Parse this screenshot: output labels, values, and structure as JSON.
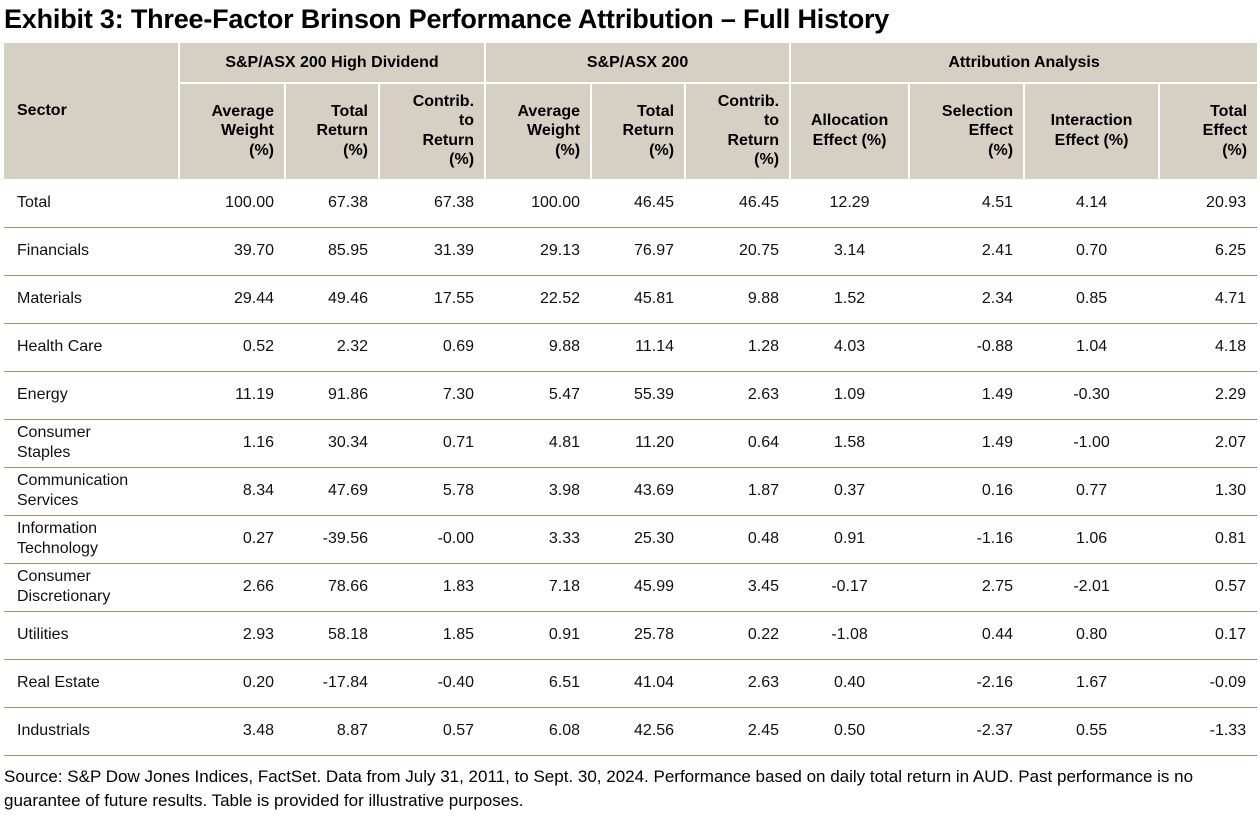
{
  "title": "Exhibit 3: Three-Factor Brinson Performance Attribution – Full History",
  "table": {
    "sector_header": "Sector",
    "groups": [
      {
        "label": "S&P/ASX 200 High Dividend",
        "span": 3
      },
      {
        "label": "S&P/ASX 200",
        "span": 3
      },
      {
        "label": "Attribution Analysis",
        "span": 4
      }
    ],
    "columns": [
      "Average\nWeight\n(%)",
      "Total\nReturn\n(%)",
      "Contrib.\nto\nReturn\n(%)",
      "Average\nWeight\n(%)",
      "Total\nReturn\n(%)",
      "Contrib.\nto\nReturn\n(%)",
      "Allocation\nEffect (%)",
      "Selection\nEffect\n(%)",
      "Interaction\nEffect (%)",
      "Total\nEffect\n(%)"
    ],
    "rows": [
      {
        "sector": "Total",
        "values": [
          "100.00",
          "67.38",
          "67.38",
          "100.00",
          "46.45",
          "46.45",
          "12.29",
          "4.51",
          "4.14",
          "20.93"
        ]
      },
      {
        "sector": "Financials",
        "values": [
          "39.70",
          "85.95",
          "31.39",
          "29.13",
          "76.97",
          "20.75",
          "3.14",
          "2.41",
          "0.70",
          "6.25"
        ]
      },
      {
        "sector": "Materials",
        "values": [
          "29.44",
          "49.46",
          "17.55",
          "22.52",
          "45.81",
          "9.88",
          "1.52",
          "2.34",
          "0.85",
          "4.71"
        ]
      },
      {
        "sector": "Health Care",
        "values": [
          "0.52",
          "2.32",
          "0.69",
          "9.88",
          "11.14",
          "1.28",
          "4.03",
          "-0.88",
          "1.04",
          "4.18"
        ]
      },
      {
        "sector": "Energy",
        "values": [
          "11.19",
          "91.86",
          "7.30",
          "5.47",
          "55.39",
          "2.63",
          "1.09",
          "1.49",
          "-0.30",
          "2.29"
        ]
      },
      {
        "sector": "Consumer\nStaples",
        "values": [
          "1.16",
          "30.34",
          "0.71",
          "4.81",
          "11.20",
          "0.64",
          "1.58",
          "1.49",
          "-1.00",
          "2.07"
        ]
      },
      {
        "sector": "Communication\nServices",
        "values": [
          "8.34",
          "47.69",
          "5.78",
          "3.98",
          "43.69",
          "1.87",
          "0.37",
          "0.16",
          "0.77",
          "1.30"
        ]
      },
      {
        "sector": "Information\nTechnology",
        "values": [
          "0.27",
          "-39.56",
          "-0.00",
          "3.33",
          "25.30",
          "0.48",
          "0.91",
          "-1.16",
          "1.06",
          "0.81"
        ]
      },
      {
        "sector": "Consumer\nDiscretionary",
        "values": [
          "2.66",
          "78.66",
          "1.83",
          "7.18",
          "45.99",
          "3.45",
          "-0.17",
          "2.75",
          "-2.01",
          "0.57"
        ]
      },
      {
        "sector": "Utilities",
        "values": [
          "2.93",
          "58.18",
          "1.85",
          "0.91",
          "25.78",
          "0.22",
          "-1.08",
          "0.44",
          "0.80",
          "0.17"
        ]
      },
      {
        "sector": "Real Estate",
        "values": [
          "0.20",
          "-17.84",
          "-0.40",
          "6.51",
          "41.04",
          "2.63",
          "0.40",
          "-2.16",
          "1.67",
          "-0.09"
        ]
      },
      {
        "sector": "Industrials",
        "values": [
          "3.48",
          "8.87",
          "0.57",
          "6.08",
          "42.56",
          "2.45",
          "0.50",
          "-2.37",
          "0.55",
          "-1.33"
        ]
      }
    ]
  },
  "source": "Source: S&P Dow Jones Indices, FactSet. Data from July 31, 2011, to Sept. 30, 2024. Performance based on daily total return in AUD. Past performance is no guarantee of future results. Table is provided for illustrative purposes.",
  "colors": {
    "header_background": "#d6d0c4",
    "row_divider": "#a39675",
    "header_gap": "#ffffff",
    "text": "#000000"
  },
  "chart_data": {
    "type": "table",
    "title": "Exhibit 3: Three-Factor Brinson Performance Attribution – Full History",
    "column_groups": [
      "S&P/ASX 200 High Dividend",
      "S&P/ASX 200",
      "Attribution Analysis"
    ],
    "columns": [
      "Sector",
      "High Dividend Average Weight (%)",
      "High Dividend Total Return (%)",
      "High Dividend Contrib. to Return (%)",
      "S&P/ASX 200 Average Weight (%)",
      "S&P/ASX 200 Total Return (%)",
      "S&P/ASX 200 Contrib. to Return (%)",
      "Allocation Effect (%)",
      "Selection Effect (%)",
      "Interaction Effect (%)",
      "Total Effect (%)"
    ],
    "rows": [
      [
        "Total",
        100.0,
        67.38,
        67.38,
        100.0,
        46.45,
        46.45,
        12.29,
        4.51,
        4.14,
        20.93
      ],
      [
        "Financials",
        39.7,
        85.95,
        31.39,
        29.13,
        76.97,
        20.75,
        3.14,
        2.41,
        0.7,
        6.25
      ],
      [
        "Materials",
        29.44,
        49.46,
        17.55,
        22.52,
        45.81,
        9.88,
        1.52,
        2.34,
        0.85,
        4.71
      ],
      [
        "Health Care",
        0.52,
        2.32,
        0.69,
        9.88,
        11.14,
        1.28,
        4.03,
        -0.88,
        1.04,
        4.18
      ],
      [
        "Energy",
        11.19,
        91.86,
        7.3,
        5.47,
        55.39,
        2.63,
        1.09,
        1.49,
        -0.3,
        2.29
      ],
      [
        "Consumer Staples",
        1.16,
        30.34,
        0.71,
        4.81,
        11.2,
        0.64,
        1.58,
        1.49,
        -1.0,
        2.07
      ],
      [
        "Communication Services",
        8.34,
        47.69,
        5.78,
        3.98,
        43.69,
        1.87,
        0.37,
        0.16,
        0.77,
        1.3
      ],
      [
        "Information Technology",
        0.27,
        -39.56,
        -0.0,
        3.33,
        25.3,
        0.48,
        0.91,
        -1.16,
        1.06,
        0.81
      ],
      [
        "Consumer Discretionary",
        2.66,
        78.66,
        1.83,
        7.18,
        45.99,
        3.45,
        -0.17,
        2.75,
        -2.01,
        0.57
      ],
      [
        "Utilities",
        2.93,
        58.18,
        1.85,
        0.91,
        25.78,
        0.22,
        -1.08,
        0.44,
        0.8,
        0.17
      ],
      [
        "Real Estate",
        0.2,
        -17.84,
        -0.4,
        6.51,
        41.04,
        2.63,
        0.4,
        -2.16,
        1.67,
        -0.09
      ],
      [
        "Industrials",
        3.48,
        8.87,
        0.57,
        6.08,
        42.56,
        2.45,
        0.5,
        -2.37,
        0.55,
        -1.33
      ]
    ]
  }
}
